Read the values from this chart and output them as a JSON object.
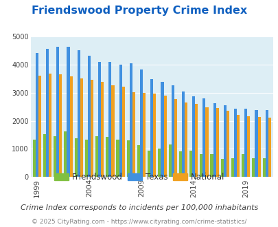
{
  "title": "Friendswood Property Crime Index",
  "subtitle": "Crime Index corresponds to incidents per 100,000 inhabitants",
  "copyright": "© 2025 CityRating.com - https://www.cityrating.com/crime-statistics/",
  "years": [
    1999,
    2000,
    2001,
    2002,
    2003,
    2004,
    2005,
    2006,
    2007,
    2008,
    2009,
    2010,
    2011,
    2012,
    2013,
    2014,
    2015,
    2016,
    2017,
    2018,
    2019,
    2020,
    2021
  ],
  "friendswood": [
    1330,
    1520,
    1450,
    1620,
    1390,
    1320,
    1450,
    1430,
    1340,
    1310,
    1130,
    950,
    1010,
    1150,
    910,
    950,
    820,
    820,
    650,
    660,
    820,
    680,
    670
  ],
  "texas": [
    4400,
    4550,
    4620,
    4620,
    4500,
    4300,
    4090,
    4100,
    4000,
    4030,
    3820,
    3470,
    3390,
    3250,
    3040,
    2870,
    2790,
    2620,
    2550,
    2430,
    2420,
    2390,
    2390
  ],
  "national": [
    3600,
    3670,
    3640,
    3580,
    3500,
    3450,
    3370,
    3250,
    3220,
    3010,
    3000,
    2960,
    2900,
    2760,
    2640,
    2590,
    2490,
    2450,
    2360,
    2220,
    2150,
    2140,
    2120
  ],
  "bar_colors": {
    "friendswood": "#80c040",
    "texas": "#4090e0",
    "national": "#f0a020"
  },
  "ylim": [
    0,
    5000
  ],
  "yticks": [
    0,
    1000,
    2000,
    3000,
    4000,
    5000
  ],
  "plot_bg": "#ddeef5",
  "title_color": "#1060c0",
  "subtitle_color": "#404040",
  "copyright_color": "#888888",
  "tick_label_years": [
    1999,
    2004,
    2009,
    2014,
    2019
  ],
  "grid_color": "#ffffff",
  "title_fontsize": 11.5,
  "subtitle_fontsize": 8,
  "copyright_fontsize": 6.5,
  "legend_fontsize": 8.5
}
